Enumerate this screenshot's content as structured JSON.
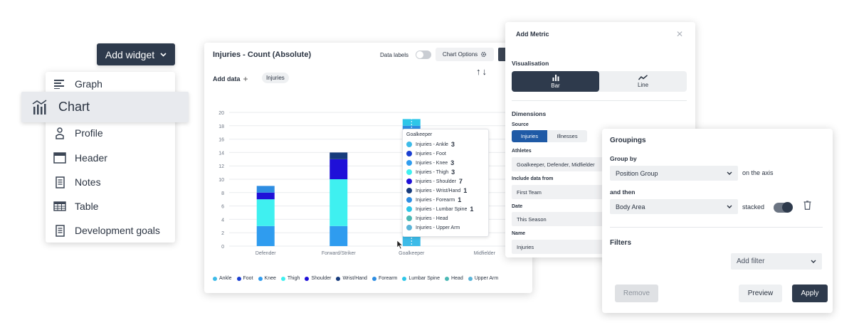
{
  "add_widget": {
    "label": "Add widget"
  },
  "widget_menu": {
    "items": [
      {
        "label": "Graph",
        "icon": "graph-lines-icon"
      },
      {
        "label": "Chart",
        "icon": "bar-chart-icon"
      },
      {
        "label": "Profile",
        "icon": "person-icon"
      },
      {
        "label": "Header",
        "icon": "header-icon"
      },
      {
        "label": "Notes",
        "icon": "document-icon"
      },
      {
        "label": "Table",
        "icon": "table-icon"
      },
      {
        "label": "Development goals",
        "icon": "document-icon"
      }
    ]
  },
  "chart_card": {
    "title": "Injuries - Count (Absolute)",
    "data_labels": "Data labels",
    "chart_options": "Chart Options",
    "add_data": "Add data",
    "chip": "Injuries"
  },
  "chart_data": {
    "type": "bar",
    "stacked": true,
    "title": "Injuries - Count (Absolute)",
    "categories": [
      "Defender",
      "Forward/Striker",
      "Goalkeeper",
      "Midfielder"
    ],
    "ylim": [
      0,
      20
    ],
    "yticks": [
      0,
      2,
      4,
      6,
      8,
      10,
      12,
      14,
      16,
      18,
      20
    ],
    "grid": true,
    "legend_position": "bottom",
    "series": [
      {
        "name": "Ankle",
        "color": "#3dbbe8",
        "values": [
          0,
          0,
          3,
          0
        ]
      },
      {
        "name": "Foot",
        "color": "#1a3fd1",
        "values": [
          0,
          0,
          0,
          0
        ]
      },
      {
        "name": "Knee",
        "color": "#2f9cef",
        "values": [
          3,
          3,
          3,
          0
        ]
      },
      {
        "name": "Thigh",
        "color": "#3ff0f0",
        "values": [
          4,
          7,
          3,
          0
        ]
      },
      {
        "name": "Shoulder",
        "color": "#1f10d8",
        "values": [
          1,
          3,
          7,
          0
        ]
      },
      {
        "name": "Wrist/Hand",
        "color": "#173b7c",
        "values": [
          0,
          1,
          1,
          0
        ]
      },
      {
        "name": "Forearm",
        "color": "#2d8de2",
        "values": [
          1,
          0,
          1,
          0
        ]
      },
      {
        "name": "Lumbar Spine",
        "color": "#2ec6e8",
        "values": [
          0,
          0,
          1,
          0
        ]
      },
      {
        "name": "Head",
        "color": "#4ab8b4",
        "values": [
          0,
          0,
          0,
          0
        ]
      },
      {
        "name": "Upper Arm",
        "color": "#5ab4d8",
        "values": [
          0,
          0,
          0,
          0
        ]
      }
    ],
    "tooltip": {
      "title": "Goalkeeper",
      "rows": [
        {
          "label": "Injuries - Ankle",
          "value": "3",
          "color": "#3dbbe8"
        },
        {
          "label": "Injuries - Foot",
          "value": "",
          "color": "#1a3fd1"
        },
        {
          "label": "Injuries - Knee",
          "value": "3",
          "color": "#2f9cef"
        },
        {
          "label": "Injuries - Thigh",
          "value": "3",
          "color": "#3ff0f0"
        },
        {
          "label": "Injuries - Shoulder",
          "value": "7",
          "color": "#1f10d8"
        },
        {
          "label": "Injuries - Wrist/Hand",
          "value": "1",
          "color": "#173b7c"
        },
        {
          "label": "Injuries - Forearm",
          "value": "1",
          "color": "#2d8de2"
        },
        {
          "label": "Injuries - Lumbar Spine",
          "value": "1",
          "color": "#2ec6e8"
        },
        {
          "label": "Injuries - Head",
          "value": "",
          "color": "#4ab8b4"
        },
        {
          "label": "Injuries - Upper Arm",
          "value": "",
          "color": "#5ab4d8"
        }
      ]
    }
  },
  "metric_panel": {
    "title": "Add Metric",
    "visualisation_label": "Visualisation",
    "vis_bar": "Bar",
    "vis_line": "Line",
    "dimensions_label": "Dimensions",
    "source_label": "Source",
    "source_injuries": "Injuries",
    "source_illnesses": "Illnesses",
    "athletes_label": "Athletes",
    "athletes_value": "Goalkeeper, Defender, Midfielder",
    "include_label": "Include data from",
    "include_value": "First Team",
    "date_label": "Date",
    "date_value": "This Season",
    "name_label": "Name",
    "name_value": "Injuries"
  },
  "group_panel": {
    "title": "Groupings",
    "group_by_label": "Group by",
    "group_by_value": "Position Group",
    "on_axis": "on the axis",
    "then_label": "and then",
    "then_value": "Body Area",
    "stacked_label": "stacked",
    "filters_label": "Filters",
    "add_filter": "Add filter",
    "remove": "Remove",
    "preview": "Preview",
    "apply": "Apply"
  }
}
